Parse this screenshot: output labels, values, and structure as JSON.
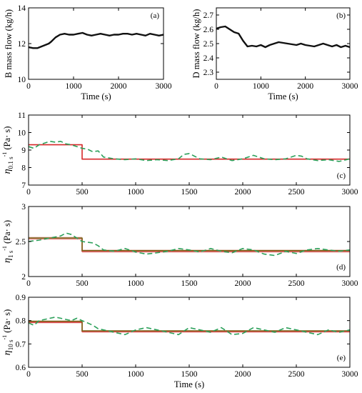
{
  "chart_data": [
    {
      "id": "a",
      "type": "line",
      "panel_label": "(a)",
      "xlabel": "Time (s)",
      "ylabel": "B mass flow (kg/h)",
      "xlim": [
        0,
        3000
      ],
      "ylim": [
        10,
        14
      ],
      "xticks": [
        "0",
        "1000",
        "2000",
        "3000"
      ],
      "yticks": [
        "10",
        "12",
        "14"
      ],
      "grid": false,
      "legend": "none",
      "series": [
        {
          "color": "#111111",
          "style": "solid",
          "x": [
            0,
            100,
            200,
            300,
            400,
            450,
            500,
            600,
            700,
            800,
            900,
            1000,
            1100,
            1200,
            1300,
            1400,
            1500,
            1600,
            1700,
            1800,
            1900,
            2000,
            2100,
            2200,
            2300,
            2400,
            2500,
            2600,
            2700,
            2800,
            2900,
            3000
          ],
          "y": [
            11.8,
            11.75,
            11.75,
            11.85,
            11.95,
            12.0,
            12.1,
            12.35,
            12.5,
            12.55,
            12.5,
            12.5,
            12.55,
            12.6,
            12.5,
            12.45,
            12.5,
            12.55,
            12.5,
            12.45,
            12.5,
            12.5,
            12.55,
            12.55,
            12.5,
            12.55,
            12.5,
            12.45,
            12.55,
            12.5,
            12.45,
            12.5
          ]
        }
      ]
    },
    {
      "id": "b",
      "type": "line",
      "panel_label": "(b)",
      "xlabel": "Time (s)",
      "ylabel": "D mass flow (kg/h)",
      "xlim": [
        0,
        3000
      ],
      "ylim": [
        2.25,
        2.75
      ],
      "xticks": [
        "0",
        "1000",
        "2000",
        "3000"
      ],
      "yticks": [
        "2.3",
        "2.4",
        "2.5",
        "2.6",
        "2.7"
      ],
      "grid": false,
      "legend": "none",
      "series": [
        {
          "color": "#111111",
          "style": "solid",
          "x": [
            0,
            100,
            200,
            300,
            400,
            500,
            600,
            700,
            800,
            900,
            1000,
            1100,
            1200,
            1300,
            1400,
            1500,
            1600,
            1700,
            1800,
            1900,
            2000,
            2100,
            2200,
            2300,
            2400,
            2500,
            2600,
            2700,
            2800,
            2900,
            3000
          ],
          "y": [
            2.605,
            2.615,
            2.62,
            2.6,
            2.58,
            2.57,
            2.52,
            2.48,
            2.485,
            2.48,
            2.49,
            2.475,
            2.49,
            2.5,
            2.51,
            2.505,
            2.5,
            2.495,
            2.49,
            2.5,
            2.49,
            2.485,
            2.48,
            2.49,
            2.5,
            2.49,
            2.48,
            2.49,
            2.475,
            2.485,
            2.475
          ]
        }
      ]
    },
    {
      "id": "c",
      "type": "line",
      "panel_label": "(c)",
      "xlabel": "",
      "ylabel_main": "η",
      "ylabel_sub": "0.1 s",
      "ylabel_sup": "-1",
      "ylabel_unit": " (Pa· s)",
      "xlim": [
        0,
        3000
      ],
      "ylim": [
        7,
        11
      ],
      "xticks": [
        "0",
        "500",
        "1000",
        "1500",
        "2000",
        "2500",
        "3000"
      ],
      "yticks": [
        "7",
        "8",
        "9",
        "10",
        "11"
      ],
      "grid": false,
      "legend": "none",
      "series": [
        {
          "color": "#d62728",
          "style": "solid",
          "x": [
            0,
            500,
            500,
            3000
          ],
          "y": [
            9.3,
            9.3,
            8.48,
            8.48
          ]
        },
        {
          "color": "#2ca05a",
          "style": "dashed",
          "x": [
            0,
            50,
            100,
            150,
            200,
            250,
            300,
            350,
            400,
            450,
            500,
            550,
            600,
            650,
            700,
            750,
            800,
            900,
            1000,
            1100,
            1200,
            1300,
            1400,
            1450,
            1500,
            1550,
            1600,
            1700,
            1800,
            1900,
            2000,
            2100,
            2200,
            2300,
            2400,
            2500,
            2550,
            2600,
            2700,
            2800,
            2900,
            3000
          ],
          "y": [
            9.2,
            9.1,
            9.3,
            9.4,
            9.5,
            9.45,
            9.5,
            9.35,
            9.3,
            9.2,
            9.1,
            9.05,
            8.9,
            8.95,
            8.6,
            8.55,
            8.5,
            8.45,
            8.5,
            8.4,
            8.45,
            8.4,
            8.5,
            8.75,
            8.8,
            8.65,
            8.5,
            8.45,
            8.6,
            8.4,
            8.5,
            8.7,
            8.5,
            8.45,
            8.5,
            8.7,
            8.65,
            8.5,
            8.4,
            8.45,
            8.35,
            8.5
          ]
        }
      ]
    },
    {
      "id": "d",
      "type": "line",
      "panel_label": "(d)",
      "xlabel": "",
      "ylabel_main": "η",
      "ylabel_sub": "1 s",
      "ylabel_sup": "-1",
      "ylabel_unit": " (Pa· s)",
      "xlim": [
        0,
        3000
      ],
      "ylim": [
        2,
        3
      ],
      "xticks": [
        "0",
        "500",
        "1000",
        "1500",
        "2000",
        "2500",
        "3000"
      ],
      "yticks": [
        "2",
        "2.5",
        "3"
      ],
      "grid": false,
      "legend": "none",
      "series": [
        {
          "color": "#d62728",
          "style": "solid",
          "x": [
            0,
            500,
            500,
            3000
          ],
          "y": [
            2.545,
            2.545,
            2.36,
            2.36
          ]
        },
        {
          "color": "#7a6a1f",
          "style": "solid",
          "x": [
            0,
            500,
            500,
            3000
          ],
          "y": [
            2.55,
            2.55,
            2.37,
            2.37
          ]
        },
        {
          "color": "#2ca05a",
          "style": "dashed",
          "x": [
            0,
            100,
            200,
            300,
            350,
            400,
            500,
            600,
            650,
            700,
            800,
            900,
            1000,
            1100,
            1200,
            1300,
            1400,
            1500,
            1600,
            1700,
            1800,
            1900,
            2000,
            2100,
            2200,
            2300,
            2400,
            2500,
            2600,
            2700,
            2800,
            2900,
            3000
          ],
          "y": [
            2.5,
            2.52,
            2.55,
            2.58,
            2.62,
            2.6,
            2.5,
            2.48,
            2.44,
            2.38,
            2.36,
            2.4,
            2.35,
            2.32,
            2.34,
            2.36,
            2.4,
            2.38,
            2.35,
            2.4,
            2.36,
            2.34,
            2.4,
            2.38,
            2.32,
            2.3,
            2.36,
            2.33,
            2.38,
            2.4,
            2.38,
            2.36,
            2.38
          ]
        }
      ]
    },
    {
      "id": "e",
      "type": "line",
      "panel_label": "(e)",
      "xlabel": "Time (s)",
      "ylabel_main": "η",
      "ylabel_sub": "10 s",
      "ylabel_sup": "-1",
      "ylabel_unit": " (Pa· s)",
      "xlim": [
        0,
        3000
      ],
      "ylim": [
        0.6,
        0.9
      ],
      "xticks": [
        "0",
        "500",
        "1000",
        "1500",
        "2000",
        "2500",
        "3000"
      ],
      "yticks": [
        "0.6",
        "0.7",
        "0.8",
        "0.9"
      ],
      "grid": false,
      "legend": "none",
      "series": [
        {
          "color": "#d62728",
          "style": "solid",
          "x": [
            0,
            500,
            500,
            3000
          ],
          "y": [
            0.793,
            0.793,
            0.753,
            0.753
          ]
        },
        {
          "color": "#7a6a1f",
          "style": "solid",
          "x": [
            0,
            500,
            500,
            3000
          ],
          "y": [
            0.797,
            0.797,
            0.756,
            0.756
          ]
        },
        {
          "color": "#2ca05a",
          "style": "dashed",
          "x": [
            0,
            50,
            100,
            200,
            250,
            300,
            400,
            450,
            500,
            550,
            600,
            650,
            700,
            800,
            900,
            1000,
            1100,
            1200,
            1300,
            1400,
            1500,
            1600,
            1700,
            1800,
            1900,
            2000,
            2100,
            2200,
            2300,
            2400,
            2500,
            2600,
            2700,
            2800,
            2900,
            3000
          ],
          "y": [
            0.79,
            0.78,
            0.8,
            0.81,
            0.815,
            0.81,
            0.8,
            0.81,
            0.8,
            0.79,
            0.78,
            0.765,
            0.76,
            0.75,
            0.74,
            0.76,
            0.77,
            0.76,
            0.75,
            0.74,
            0.77,
            0.76,
            0.75,
            0.77,
            0.74,
            0.745,
            0.77,
            0.76,
            0.75,
            0.77,
            0.76,
            0.75,
            0.74,
            0.76,
            0.75,
            0.76
          ]
        }
      ]
    }
  ]
}
